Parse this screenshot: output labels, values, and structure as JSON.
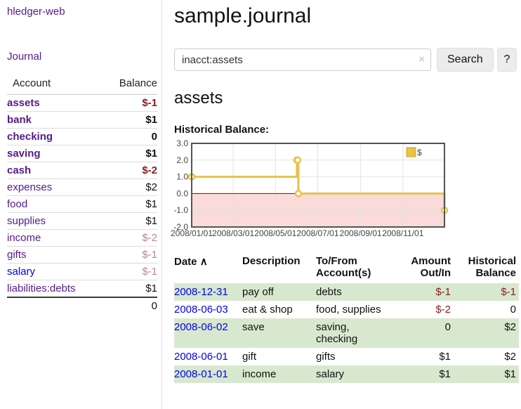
{
  "app": {
    "brand": "hledger-web",
    "nav": {
      "journal": "Journal"
    }
  },
  "sidebar": {
    "header": {
      "account": "Account",
      "balance": "Balance"
    },
    "accounts": [
      {
        "name": "assets",
        "indent": 0,
        "bold": true,
        "blue": false,
        "balance": "$-1",
        "balance_style": "neg"
      },
      {
        "name": "bank",
        "indent": 1,
        "bold": true,
        "blue": false,
        "balance": "$1",
        "balance_style": ""
      },
      {
        "name": "checking",
        "indent": 2,
        "bold": true,
        "blue": false,
        "balance": "0",
        "balance_style": ""
      },
      {
        "name": "saving",
        "indent": 2,
        "bold": true,
        "blue": false,
        "balance": "$1",
        "balance_style": ""
      },
      {
        "name": "cash",
        "indent": 1,
        "bold": true,
        "blue": false,
        "balance": "$-2",
        "balance_style": "neg"
      },
      {
        "name": "expenses",
        "indent": 0,
        "bold": false,
        "blue": false,
        "balance": "$2",
        "balance_style": ""
      },
      {
        "name": "food",
        "indent": 1,
        "bold": false,
        "blue": false,
        "balance": "$1",
        "balance_style": ""
      },
      {
        "name": "supplies",
        "indent": 1,
        "bold": false,
        "blue": false,
        "balance": "$1",
        "balance_style": ""
      },
      {
        "name": "income",
        "indent": 0,
        "bold": false,
        "blue": false,
        "balance": "$-2",
        "balance_style": "neg-muted"
      },
      {
        "name": "gifts",
        "indent": 1,
        "bold": false,
        "blue": false,
        "balance": "$-1",
        "balance_style": "neg-muted"
      },
      {
        "name": "salary",
        "indent": 1,
        "bold": false,
        "blue": true,
        "balance": "$-1",
        "balance_style": "neg-muted"
      },
      {
        "name": "liabilities:debts",
        "indent": 0,
        "bold": false,
        "blue": false,
        "balance": "$1",
        "balance_style": ""
      }
    ],
    "total": "0"
  },
  "page": {
    "title": "sample.journal"
  },
  "search": {
    "value": "inacct:assets",
    "clear": "×",
    "button": "Search",
    "help": "?"
  },
  "account_view": {
    "heading": "assets",
    "chart_title": "Historical Balance:"
  },
  "chart_data": {
    "type": "line",
    "step": true,
    "title": "Historical Balance",
    "series": [
      {
        "name": "$",
        "points": [
          [
            "2008-01-01",
            1
          ],
          [
            "2008-06-01",
            2
          ],
          [
            "2008-06-02",
            2
          ],
          [
            "2008-06-03",
            0
          ],
          [
            "2008-12-31",
            -1
          ]
        ]
      }
    ],
    "x_range": [
      "2008-01-01",
      "2008-12-31"
    ],
    "x_ticks": [
      "2008/01/01",
      "2008/03/01",
      "2008/05/01",
      "2008/07/01",
      "2008/09/01",
      "2008/11/01"
    ],
    "y_ticks": [
      "3.0",
      "2.0",
      "1.0",
      "0.0",
      "-1.0",
      "-2.0"
    ],
    "ylim": [
      -2,
      3
    ],
    "grid": true,
    "legend_position": "top-right",
    "legend": {
      "label": "$",
      "swatch_color": "#edc240"
    },
    "line_color": "#e8c14d",
    "negative_region_fill": "#fbdada",
    "zero_line_color": "#8b0000"
  },
  "transactions": {
    "columns": {
      "date": "Date",
      "description": "Description",
      "accounts": "To/From Account(s)",
      "amount": "Amount Out/In",
      "balance": "Historical Balance"
    },
    "sort_icon": "∧",
    "rows": [
      {
        "date": "2008-12-31",
        "description": "pay off",
        "accounts": "debts",
        "amount": "$-1",
        "amount_negative": true,
        "balance": "$-1",
        "balance_negative": true
      },
      {
        "date": "2008-06-03",
        "description": "eat & shop",
        "accounts": "food, supplies",
        "amount": "$-2",
        "amount_negative": true,
        "balance": "0",
        "balance_negative": false
      },
      {
        "date": "2008-06-02",
        "description": "save",
        "accounts": "saving, checking",
        "amount": "0",
        "amount_negative": false,
        "balance": "$2",
        "balance_negative": false
      },
      {
        "date": "2008-06-01",
        "description": "gift",
        "accounts": "gifts",
        "amount": "$1",
        "amount_negative": false,
        "balance": "$2",
        "balance_negative": false
      },
      {
        "date": "2008-01-01",
        "description": "income",
        "accounts": "salary",
        "amount": "$1",
        "amount_negative": false,
        "balance": "$1",
        "balance_negative": false
      }
    ]
  },
  "colors": {
    "link_purple": "#551a8b",
    "link_blue": "#0000ee",
    "negative_strong": "#8b1c1c",
    "negative_muted": "#bc8888",
    "row_stripe_green": "#d7e8cf",
    "chart_gold": "#e8c14d",
    "chart_negative_pink": "#fbdada",
    "chart_zero_line": "#8b0000"
  }
}
